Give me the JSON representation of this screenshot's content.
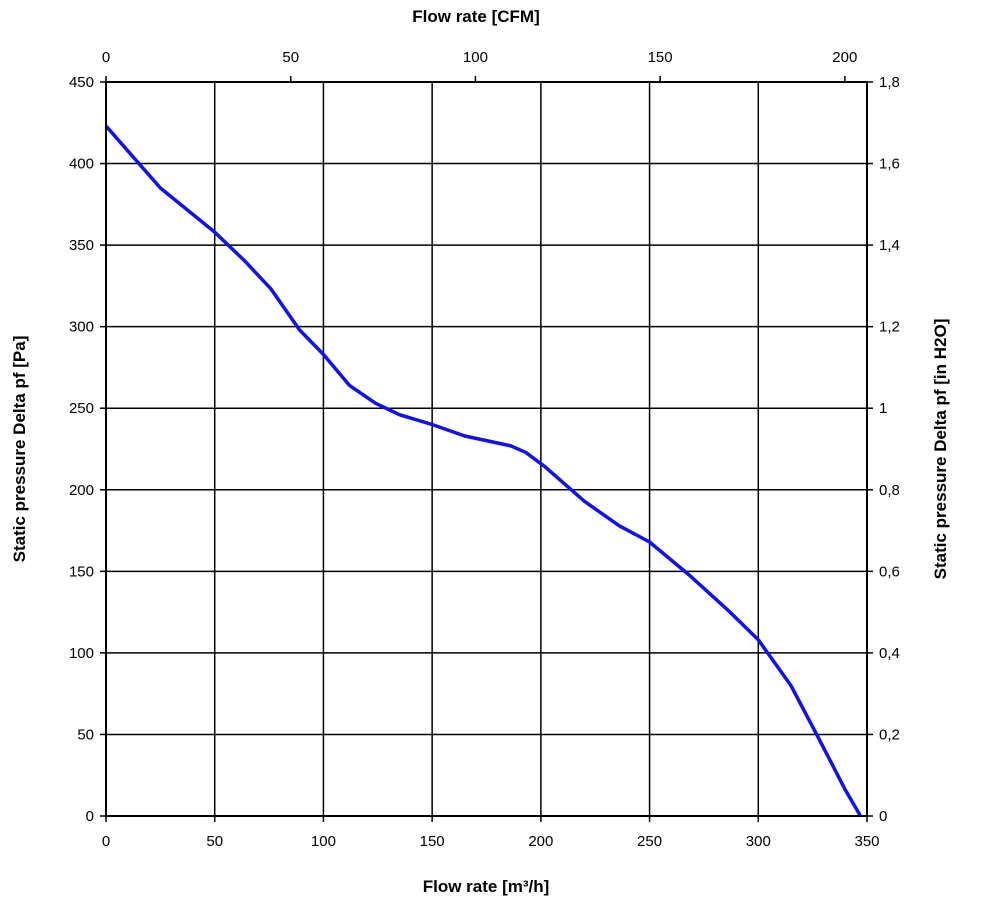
{
  "chart_data": {
    "type": "line",
    "xlabel": "Flow rate [m³/h]",
    "x2label": "Flow rate [CFM]",
    "ylabel": "Static pressure Delta pf [Pa]",
    "y2label": "Static pressure Delta pf [in H2O]",
    "xlim": [
      0,
      350
    ],
    "ylim": [
      0,
      450
    ],
    "x2lim_cfm": [
      0,
      206
    ],
    "y2lim": [
      0,
      1.8
    ],
    "x_ticks": [
      "0",
      "50",
      "100",
      "150",
      "200",
      "250",
      "300",
      "350"
    ],
    "y_ticks": [
      "0",
      "50",
      "100",
      "150",
      "200",
      "250",
      "300",
      "350",
      "400",
      "450"
    ],
    "x2_ticks": [
      "0",
      "50",
      "100",
      "150",
      "200"
    ],
    "y2_ticks": [
      "0",
      "0,2",
      "0,4",
      "0,6",
      "0,8",
      "1",
      "1,2",
      "1,4",
      "1,6",
      "1,8"
    ],
    "grid": true,
    "series_color": "#1010f0",
    "x": [
      0,
      25,
      50,
      64,
      76,
      89,
      100,
      112,
      124,
      135,
      150,
      165,
      186,
      193,
      202,
      220,
      236,
      250,
      268,
      287,
      300,
      315,
      328,
      340,
      347
    ],
    "y": [
      423,
      385,
      358,
      340,
      323,
      298,
      283,
      264,
      253,
      246,
      240,
      233,
      227,
      223,
      214,
      193,
      178,
      168,
      148,
      125,
      108,
      80,
      47,
      16,
      0
    ]
  }
}
